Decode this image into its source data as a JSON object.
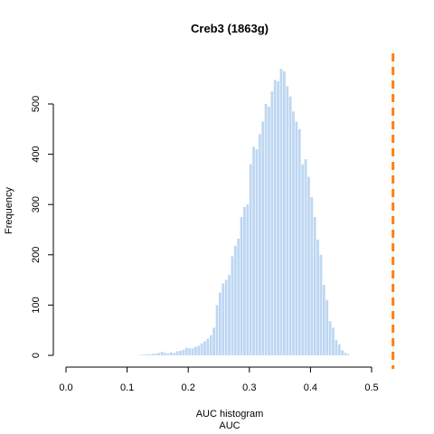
{
  "chart_data": {
    "type": "bar",
    "title": "Creb3 (1863g)",
    "xlabel_line1": "AUC histogram",
    "xlabel_line2": "AUC",
    "ylabel": "Frequency",
    "xlim": [
      0.0,
      0.5
    ],
    "ylim": [
      0,
      575
    ],
    "x_ticks": [
      "0.0",
      "0.1",
      "0.2",
      "0.3",
      "0.4",
      "0.5"
    ],
    "y_ticks": [
      "0",
      "100",
      "200",
      "300",
      "400",
      "500"
    ],
    "bin_width": 0.005,
    "bins_start": [
      0.12,
      0.125,
      0.13,
      0.135,
      0.14,
      0.145,
      0.15,
      0.155,
      0.16,
      0.165,
      0.17,
      0.175,
      0.18,
      0.185,
      0.19,
      0.195,
      0.2,
      0.205,
      0.21,
      0.215,
      0.22,
      0.225,
      0.23,
      0.235,
      0.24,
      0.245,
      0.25,
      0.255,
      0.26,
      0.265,
      0.27,
      0.275,
      0.28,
      0.285,
      0.29,
      0.295,
      0.3,
      0.305,
      0.31,
      0.315,
      0.32,
      0.325,
      0.33,
      0.335,
      0.34,
      0.345,
      0.35,
      0.355,
      0.36,
      0.365,
      0.37,
      0.375,
      0.38,
      0.385,
      0.39,
      0.395,
      0.4,
      0.405,
      0.41,
      0.415,
      0.42,
      0.425,
      0.43,
      0.435,
      0.44,
      0.445,
      0.45,
      0.455,
      0.46
    ],
    "values": [
      1,
      1,
      2,
      2,
      3,
      3,
      5,
      7,
      5,
      4,
      6,
      5,
      8,
      9,
      11,
      15,
      14,
      14,
      17,
      19,
      24,
      28,
      33,
      40,
      55,
      100,
      125,
      143,
      150,
      160,
      197,
      218,
      232,
      275,
      295,
      300,
      380,
      415,
      410,
      440,
      465,
      500,
      495,
      525,
      548,
      545,
      570,
      565,
      535,
      515,
      485,
      465,
      450,
      380,
      390,
      355,
      315,
      275,
      230,
      200,
      140,
      110,
      68,
      55,
      30,
      22,
      10,
      5,
      2
    ],
    "bar_color": "#bed7f2",
    "threshold": 0.535,
    "threshold_color": "#ff7f0e"
  }
}
